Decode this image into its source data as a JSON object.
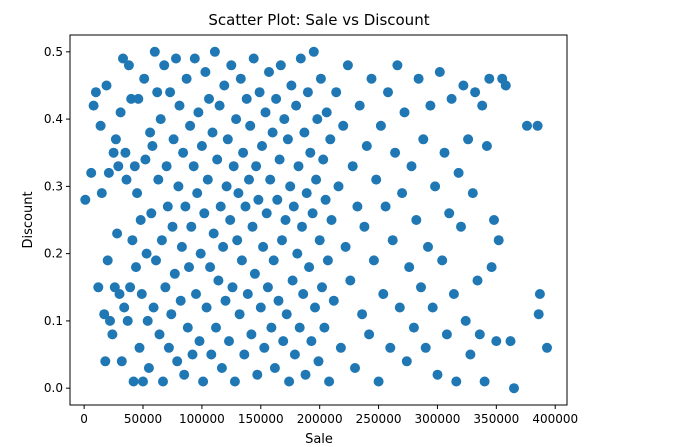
{
  "chart_data": {
    "type": "scatter",
    "title": "Scatter Plot: Sale vs Discount",
    "xlabel": "Sale",
    "ylabel": "Discount",
    "xlim": [
      -12000,
      410000
    ],
    "ylim": [
      -0.025,
      0.525
    ],
    "xticks": [
      0,
      50000,
      100000,
      150000,
      200000,
      250000,
      300000,
      350000,
      400000
    ],
    "xtick_labels": [
      "0",
      "50000",
      "100000",
      "150000",
      "200000",
      "250000",
      "300000",
      "350000",
      "400000"
    ],
    "yticks": [
      0.0,
      0.1,
      0.2,
      0.3,
      0.4,
      0.5
    ],
    "ytick_labels": [
      "0.0",
      "0.1",
      "0.2",
      "0.3",
      "0.4",
      "0.5"
    ],
    "grid": false,
    "legend": "none",
    "marker": "circle",
    "color": "#1f77b4",
    "series": [
      {
        "points": [
          [
            1000,
            0.28
          ],
          [
            6000,
            0.32
          ],
          [
            8000,
            0.42
          ],
          [
            10000,
            0.44
          ],
          [
            12000,
            0.15
          ],
          [
            14000,
            0.39
          ],
          [
            15000,
            0.29
          ],
          [
            17000,
            0.11
          ],
          [
            18000,
            0.04
          ],
          [
            19000,
            0.45
          ],
          [
            20000,
            0.19
          ],
          [
            21000,
            0.32
          ],
          [
            22000,
            0.1
          ],
          [
            24000,
            0.08
          ],
          [
            25000,
            0.35
          ],
          [
            26000,
            0.15
          ],
          [
            27000,
            0.37
          ],
          [
            28000,
            0.23
          ],
          [
            29000,
            0.33
          ],
          [
            30000,
            0.14
          ],
          [
            31000,
            0.41
          ],
          [
            32000,
            0.04
          ],
          [
            33000,
            0.49
          ],
          [
            34000,
            0.12
          ],
          [
            35000,
            0.35
          ],
          [
            36000,
            0.31
          ],
          [
            37000,
            0.1
          ],
          [
            38000,
            0.48
          ],
          [
            39000,
            0.15
          ],
          [
            40000,
            0.43
          ],
          [
            41000,
            0.22
          ],
          [
            42000,
            0.01
          ],
          [
            43000,
            0.33
          ],
          [
            44000,
            0.18
          ],
          [
            45000,
            0.29
          ],
          [
            46000,
            0.43
          ],
          [
            47000,
            0.06
          ],
          [
            48000,
            0.25
          ],
          [
            49000,
            0.14
          ],
          [
            50000,
            0.01
          ],
          [
            51000,
            0.46
          ],
          [
            52000,
            0.34
          ],
          [
            53000,
            0.2
          ],
          [
            54000,
            0.1
          ],
          [
            55000,
            0.03
          ],
          [
            56000,
            0.38
          ],
          [
            57000,
            0.26
          ],
          [
            58000,
            0.36
          ],
          [
            59000,
            0.12
          ],
          [
            60000,
            0.5
          ],
          [
            61000,
            0.19
          ],
          [
            62000,
            0.44
          ],
          [
            63000,
            0.31
          ],
          [
            64000,
            0.08
          ],
          [
            65000,
            0.4
          ],
          [
            66000,
            0.22
          ],
          [
            67000,
            0.01
          ],
          [
            68000,
            0.48
          ],
          [
            69000,
            0.15
          ],
          [
            70000,
            0.33
          ],
          [
            71000,
            0.27
          ],
          [
            72000,
            0.06
          ],
          [
            73000,
            0.44
          ],
          [
            74000,
            0.11
          ],
          [
            75000,
            0.24
          ],
          [
            76000,
            0.37
          ],
          [
            77000,
            0.17
          ],
          [
            78000,
            0.49
          ],
          [
            79000,
            0.04
          ],
          [
            80000,
            0.3
          ],
          [
            81000,
            0.42
          ],
          [
            82000,
            0.13
          ],
          [
            83000,
            0.21
          ],
          [
            84000,
            0.35
          ],
          [
            85000,
            0.02
          ],
          [
            86000,
            0.27
          ],
          [
            87000,
            0.46
          ],
          [
            88000,
            0.09
          ],
          [
            89000,
            0.18
          ],
          [
            90000,
            0.39
          ],
          [
            91000,
            0.24
          ],
          [
            92000,
            0.05
          ],
          [
            93000,
            0.33
          ],
          [
            94000,
            0.49
          ],
          [
            95000,
            0.14
          ],
          [
            96000,
            0.29
          ],
          [
            97000,
            0.41
          ],
          [
            98000,
            0.07
          ],
          [
            99000,
            0.2
          ],
          [
            100000,
            0.36
          ],
          [
            101000,
            0.01
          ],
          [
            102000,
            0.26
          ],
          [
            103000,
            0.47
          ],
          [
            104000,
            0.12
          ],
          [
            105000,
            0.31
          ],
          [
            106000,
            0.43
          ],
          [
            107000,
            0.18
          ],
          [
            108000,
            0.05
          ],
          [
            109000,
            0.38
          ],
          [
            110000,
            0.23
          ],
          [
            111000,
            0.5
          ],
          [
            112000,
            0.09
          ],
          [
            113000,
            0.34
          ],
          [
            114000,
            0.16
          ],
          [
            115000,
            0.42
          ],
          [
            116000,
            0.27
          ],
          [
            117000,
            0.03
          ],
          [
            118000,
            0.21
          ],
          [
            119000,
            0.45
          ],
          [
            120000,
            0.13
          ],
          [
            121000,
            0.3
          ],
          [
            122000,
            0.37
          ],
          [
            123000,
            0.07
          ],
          [
            124000,
            0.25
          ],
          [
            125000,
            0.48
          ],
          [
            126000,
            0.15
          ],
          [
            127000,
            0.33
          ],
          [
            128000,
            0.01
          ],
          [
            129000,
            0.4
          ],
          [
            130000,
            0.22
          ],
          [
            131000,
            0.29
          ],
          [
            132000,
            0.11
          ],
          [
            133000,
            0.46
          ],
          [
            134000,
            0.19
          ],
          [
            135000,
            0.35
          ],
          [
            136000,
            0.05
          ],
          [
            137000,
            0.27
          ],
          [
            138000,
            0.43
          ],
          [
            139000,
            0.14
          ],
          [
            140000,
            0.31
          ],
          [
            141000,
            0.39
          ],
          [
            142000,
            0.08
          ],
          [
            143000,
            0.24
          ],
          [
            144000,
            0.49
          ],
          [
            145000,
            0.17
          ],
          [
            146000,
            0.33
          ],
          [
            147000,
            0.02
          ],
          [
            148000,
            0.28
          ],
          [
            149000,
            0.44
          ],
          [
            150000,
            0.12
          ],
          [
            151000,
            0.36
          ],
          [
            152000,
            0.21
          ],
          [
            153000,
            0.06
          ],
          [
            154000,
            0.41
          ],
          [
            155000,
            0.26
          ],
          [
            156000,
            0.15
          ],
          [
            157000,
            0.47
          ],
          [
            158000,
            0.31
          ],
          [
            159000,
            0.09
          ],
          [
            160000,
            0.38
          ],
          [
            161000,
            0.19
          ],
          [
            162000,
            0.03
          ],
          [
            163000,
            0.43
          ],
          [
            164000,
            0.28
          ],
          [
            165000,
            0.13
          ],
          [
            166000,
            0.34
          ],
          [
            167000,
            0.48
          ],
          [
            168000,
            0.22
          ],
          [
            169000,
            0.07
          ],
          [
            170000,
            0.4
          ],
          [
            171000,
            0.25
          ],
          [
            172000,
            0.11
          ],
          [
            173000,
            0.37
          ],
          [
            174000,
            0.01
          ],
          [
            175000,
            0.3
          ],
          [
            176000,
            0.45
          ],
          [
            177000,
            0.16
          ],
          [
            178000,
            0.27
          ],
          [
            179000,
            0.05
          ],
          [
            180000,
            0.42
          ],
          [
            181000,
            0.2
          ],
          [
            182000,
            0.33
          ],
          [
            183000,
            0.09
          ],
          [
            184000,
            0.49
          ],
          [
            185000,
            0.24
          ],
          [
            186000,
            0.14
          ],
          [
            187000,
            0.38
          ],
          [
            188000,
            0.02
          ],
          [
            189000,
            0.29
          ],
          [
            190000,
            0.44
          ],
          [
            191000,
            0.18
          ],
          [
            192000,
            0.35
          ],
          [
            193000,
            0.07
          ],
          [
            194000,
            0.26
          ],
          [
            195000,
            0.5
          ],
          [
            196000,
            0.12
          ],
          [
            197000,
            0.31
          ],
          [
            198000,
            0.4
          ],
          [
            199000,
            0.04
          ],
          [
            200000,
            0.22
          ],
          [
            201000,
            0.46
          ],
          [
            202000,
            0.15
          ],
          [
            203000,
            0.34
          ],
          [
            204000,
            0.09
          ],
          [
            205000,
            0.28
          ],
          [
            206000,
            0.41
          ],
          [
            207000,
            0.19
          ],
          [
            208000,
            0.01
          ],
          [
            209000,
            0.37
          ],
          [
            210000,
            0.25
          ],
          [
            212000,
            0.13
          ],
          [
            214000,
            0.44
          ],
          [
            216000,
            0.3
          ],
          [
            218000,
            0.06
          ],
          [
            220000,
            0.39
          ],
          [
            222000,
            0.21
          ],
          [
            224000,
            0.48
          ],
          [
            226000,
            0.16
          ],
          [
            228000,
            0.33
          ],
          [
            230000,
            0.03
          ],
          [
            232000,
            0.27
          ],
          [
            234000,
            0.42
          ],
          [
            236000,
            0.11
          ],
          [
            238000,
            0.24
          ],
          [
            240000,
            0.36
          ],
          [
            242000,
            0.08
          ],
          [
            244000,
            0.46
          ],
          [
            246000,
            0.19
          ],
          [
            248000,
            0.31
          ],
          [
            250000,
            0.01
          ],
          [
            252000,
            0.39
          ],
          [
            254000,
            0.14
          ],
          [
            256000,
            0.27
          ],
          [
            258000,
            0.44
          ],
          [
            260000,
            0.06
          ],
          [
            262000,
            0.22
          ],
          [
            264000,
            0.35
          ],
          [
            266000,
            0.48
          ],
          [
            268000,
            0.12
          ],
          [
            270000,
            0.29
          ],
          [
            272000,
            0.41
          ],
          [
            274000,
            0.04
          ],
          [
            276000,
            0.18
          ],
          [
            278000,
            0.33
          ],
          [
            280000,
            0.09
          ],
          [
            282000,
            0.25
          ],
          [
            284000,
            0.46
          ],
          [
            286000,
            0.15
          ],
          [
            288000,
            0.37
          ],
          [
            290000,
            0.06
          ],
          [
            292000,
            0.21
          ],
          [
            294000,
            0.42
          ],
          [
            296000,
            0.12
          ],
          [
            298000,
            0.3
          ],
          [
            300000,
            0.02
          ],
          [
            302000,
            0.47
          ],
          [
            304000,
            0.19
          ],
          [
            306000,
            0.35
          ],
          [
            308000,
            0.08
          ],
          [
            310000,
            0.26
          ],
          [
            312000,
            0.43
          ],
          [
            314000,
            0.14
          ],
          [
            316000,
            0.01
          ],
          [
            318000,
            0.32
          ],
          [
            320000,
            0.24
          ],
          [
            322000,
            0.45
          ],
          [
            324000,
            0.1
          ],
          [
            326000,
            0.37
          ],
          [
            328000,
            0.05
          ],
          [
            330000,
            0.29
          ],
          [
            332000,
            0.44
          ],
          [
            334000,
            0.16
          ],
          [
            336000,
            0.08
          ],
          [
            338000,
            0.42
          ],
          [
            340000,
            0.01
          ],
          [
            342000,
            0.36
          ],
          [
            344000,
            0.46
          ],
          [
            346000,
            0.18
          ],
          [
            348000,
            0.25
          ],
          [
            350000,
            0.07
          ],
          [
            352000,
            0.22
          ],
          [
            355000,
            0.46
          ],
          [
            358000,
            0.45
          ],
          [
            362000,
            0.07
          ],
          [
            365000,
            0.0
          ],
          [
            376000,
            0.39
          ],
          [
            385000,
            0.39
          ],
          [
            386000,
            0.11
          ],
          [
            387000,
            0.14
          ],
          [
            393000,
            0.06
          ]
        ]
      }
    ]
  }
}
